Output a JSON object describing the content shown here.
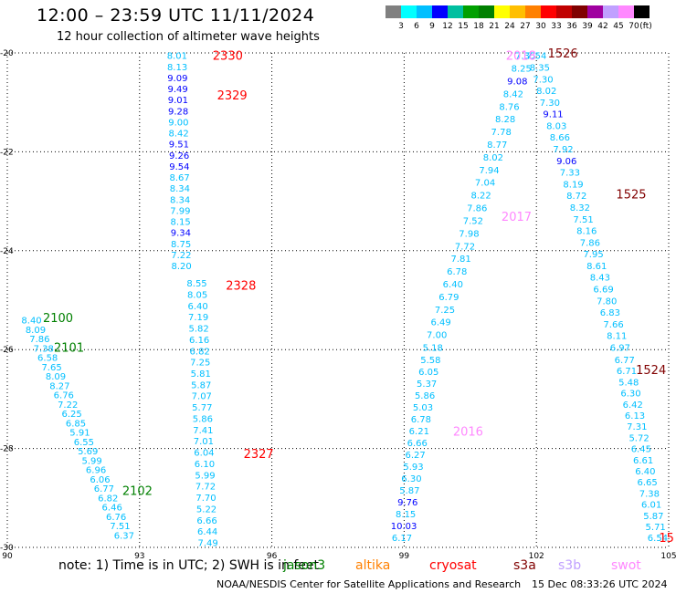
{
  "header": {
    "title": "12:00 – 23:59 UTC 11/11/2024",
    "subtitle": "12 hour collection of altimeter wave heights"
  },
  "colorbar": {
    "unit_label": "(ft)",
    "labels": [
      "3",
      "6",
      "9",
      "12",
      "15",
      "18",
      "21",
      "24",
      "27",
      "30",
      "33",
      "36",
      "39",
      "42",
      "45",
      "70"
    ],
    "colors": [
      "#808080",
      "#00ffff",
      "#00bfff",
      "#0000ff",
      "#00bfa0",
      "#00a000",
      "#008000",
      "#ffff00",
      "#ffbf00",
      "#ff8000",
      "#ff0000",
      "#c00000",
      "#800000",
      "#a000a0",
      "#c0a0ff",
      "#ff88ff",
      "#000000"
    ]
  },
  "notes": {
    "note": "note:  1) Time is in UTC;  2) SWH is in feet",
    "satellites": [
      {
        "name": "jason3",
        "color": "#008000"
      },
      {
        "name": "altika",
        "color": "#ff8000"
      },
      {
        "name": "cryosat",
        "color": "#ff0000"
      },
      {
        "name": "s3a",
        "color": "#800000"
      },
      {
        "name": "s3b",
        "color": "#c0a0ff"
      },
      {
        "name": "swot",
        "color": "#ff88ff"
      }
    ]
  },
  "footer": {
    "left": "NOAA/NESDIS Center for Satellite Applications and Research",
    "right": "15 Dec 08:33:26 UTC 2024"
  },
  "chart_data": {
    "type": "scatter",
    "xlim": [
      90,
      105
    ],
    "ylim": [
      -30,
      -20
    ],
    "x_ticks": [
      "90",
      "93",
      "96",
      "99",
      "102",
      "105"
    ],
    "y_ticks": [
      "-20",
      "-22",
      "-24",
      "-26",
      "-28",
      "-30"
    ],
    "grid": true,
    "series": [
      {
        "name": "2102",
        "x_start": 90.2,
        "x_end": 92.5,
        "y_start": -25.5,
        "y_end": -29.8,
        "end_label_y": -29.0,
        "label_y": -25.5,
        "label_x": 90.8,
        "labels": [
          "2100",
          "2101",
          "2102"
        ],
        "values": [
          "8.40",
          "8.09",
          "7.86",
          "7.38",
          "6.58",
          "7.65",
          "8.09",
          "8.27",
          "6.76",
          "7.22",
          "6.25",
          "6.85",
          "5.91",
          "6.55",
          "5.69",
          "5.99",
          "6.96",
          "6.06",
          "6.77",
          "6.82",
          "6.46",
          "6.76",
          "7.51",
          "6.37"
        ],
        "colors": [
          "#00bfff",
          "#00bfff",
          "#00bfff",
          "#00bfff",
          "#00bfff",
          "#00bfff",
          "#00bfff",
          "#00bfff",
          "#00bfff",
          "#00bfff",
          "#00bfff",
          "#00bfff",
          "#00bfff",
          "#00bfff",
          "#00bfff",
          "#00bfff",
          "#00bfff",
          "#00bfff",
          "#00bfff",
          "#00bfff",
          "#00bfff",
          "#00bfff",
          "#00bfff",
          "#00bfff"
        ]
      },
      {
        "name": "2330",
        "values": [
          "8.01",
          "8.13",
          "9.09",
          "9.49",
          "9.01",
          "9.28",
          "9.00",
          "8.42",
          "9.51",
          "9.26",
          "9.54",
          "8.67",
          "8.34",
          "8.34",
          "7.99",
          "8.15",
          "9.34",
          "8.75",
          "7.22",
          "8.20"
        ],
        "colors": [
          "#00bfff",
          "#00bfff",
          "#0000ff",
          "#0000ff",
          "#0000ff",
          "#0000ff",
          "#00bfff",
          "#00bfff",
          "#0000ff",
          "#0000ff",
          "#0000ff",
          "#00bfff",
          "#00bfff",
          "#00bfff",
          "#00bfff",
          "#00bfff",
          "#0000ff",
          "#00bfff",
          "#00bfff",
          "#00bfff"
        ]
      },
      {
        "name": "2328",
        "values": [
          "8.55",
          "8.05",
          "6.40",
          "7.19",
          "5.82",
          "6.16",
          "6.82",
          "7.25",
          "5.81",
          "5.87",
          "7.07",
          "5.77",
          "5.86",
          "7.41",
          "7.01",
          "6.04",
          "6.10",
          "5.99",
          "7.72",
          "7.70",
          "5.22",
          "6.66",
          "6.44",
          "7.49"
        ],
        "colors": [
          "#00bfff",
          "#00bfff",
          "#00bfff",
          "#00bfff",
          "#00bfff",
          "#00bfff",
          "#00bfff",
          "#00bfff",
          "#00bfff",
          "#00bfff",
          "#00bfff",
          "#00bfff",
          "#00bfff",
          "#00bfff",
          "#00bfff",
          "#00bfff",
          "#00bfff",
          "#00bfff",
          "#00bfff",
          "#00bfff",
          "#00bfff",
          "#00bfff",
          "#00bfff",
          "#00bfff"
        ]
      },
      {
        "name": "2017",
        "values": [
          "7.35",
          "8.25",
          "9.08",
          "8.42",
          "8.76",
          "8.28",
          "7.78",
          "8.77",
          "8.02",
          "7.94",
          "7.04",
          "8.22",
          "7.86",
          "7.52",
          "7.98",
          "7.72",
          "7.81",
          "6.78",
          "6.40",
          "6.79",
          "7.25",
          "6.49",
          "7.00",
          "5.18"
        ],
        "colors": [
          "#00bfff",
          "#00bfff",
          "#0000ff",
          "#00bfff",
          "#00bfff",
          "#00bfff",
          "#00bfff",
          "#00bfff",
          "#00bfff",
          "#00bfff",
          "#00bfff",
          "#00bfff",
          "#00bfff",
          "#00bfff",
          "#00bfff",
          "#00bfff",
          "#00bfff",
          "#00bfff",
          "#00bfff",
          "#00bfff",
          "#00bfff",
          "#00bfff",
          "#00bfff",
          "#00bfff"
        ]
      },
      {
        "name": "2016",
        "values": [
          "5.58",
          "6.05",
          "5.37",
          "5.86",
          "5.03",
          "6.78",
          "6.21",
          "6.66",
          "6.27",
          "5.93",
          "6.30",
          "5.87",
          "9.76",
          "8.15",
          "10.03",
          "6.17"
        ],
        "colors": [
          "#00bfff",
          "#00bfff",
          "#00bfff",
          "#00bfff",
          "#00bfff",
          "#00bfff",
          "#00bfff",
          "#00bfff",
          "#00bfff",
          "#00bfff",
          "#00bfff",
          "#00bfff",
          "#0000ff",
          "#00bfff",
          "#0000ff",
          "#00bfff"
        ]
      },
      {
        "name": "1526",
        "values": [
          "7.54",
          "8.35",
          "7.30",
          "8.02",
          "7.30",
          "9.11",
          "8.03",
          "8.66",
          "7.92",
          "9.06",
          "7.33",
          "8.19",
          "8.72",
          "8.32",
          "7.51",
          "8.16",
          "7.86",
          "7.95",
          "8.61",
          "8.43",
          "6.69",
          "7.80",
          "6.83",
          "7.66",
          "8.11",
          "6.97"
        ],
        "colors": [
          "#00bfff",
          "#00bfff",
          "#00bfff",
          "#00bfff",
          "#00bfff",
          "#0000ff",
          "#00bfff",
          "#00bfff",
          "#00bfff",
          "#0000ff",
          "#00bfff",
          "#00bfff",
          "#00bfff",
          "#00bfff",
          "#00bfff",
          "#00bfff",
          "#00bfff",
          "#00bfff",
          "#00bfff",
          "#00bfff",
          "#00bfff",
          "#00bfff",
          "#00bfff",
          "#00bfff",
          "#00bfff",
          "#00bfff"
        ]
      },
      {
        "name": "1524",
        "values": [
          "6.77",
          "6.71",
          "5.48",
          "6.30",
          "6.42",
          "6.13",
          "7.31",
          "5.72",
          "6.45",
          "6.61",
          "6.40",
          "6.65",
          "7.38",
          "6.01",
          "5.87",
          "5.71",
          "6.54"
        ],
        "colors": [
          "#00bfff",
          "#00bfff",
          "#00bfff",
          "#00bfff",
          "#00bfff",
          "#00bfff",
          "#00bfff",
          "#00bfff",
          "#00bfff",
          "#00bfff",
          "#00bfff",
          "#00bfff",
          "#00bfff",
          "#00bfff",
          "#00bfff",
          "#00bfff",
          "#00bfff"
        ]
      }
    ],
    "pass_labels": [
      {
        "text": "2330",
        "color": "#ff0000"
      },
      {
        "text": "2329",
        "color": "#ff0000"
      },
      {
        "text": "2328",
        "color": "#ff0000"
      },
      {
        "text": "2327",
        "color": "#ff0000"
      },
      {
        "text": "2100",
        "color": "#008000"
      },
      {
        "text": "2101",
        "color": "#008000"
      },
      {
        "text": "2102",
        "color": "#008000"
      },
      {
        "text": "2018",
        "color": "#ff88ff"
      },
      {
        "text": "2017",
        "color": "#ff88ff"
      },
      {
        "text": "2016",
        "color": "#ff88ff"
      },
      {
        "text": "1526",
        "color": "#800000"
      },
      {
        "text": "1525",
        "color": "#800000"
      },
      {
        "text": "1524",
        "color": "#800000"
      },
      {
        "text": "15",
        "color": "#ff0000"
      }
    ]
  }
}
